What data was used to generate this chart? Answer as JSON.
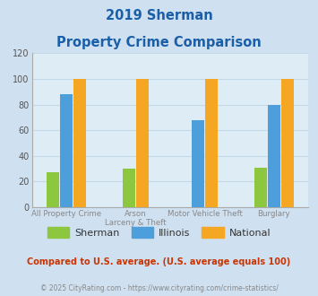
{
  "title_line1": "2019 Sherman",
  "title_line2": "Property Crime Comparison",
  "category_labels_line1": [
    "All Property Crime",
    "Arson",
    "Motor Vehicle Theft",
    "Burglary"
  ],
  "category_labels_line2": [
    "",
    "Larceny & Theft",
    "",
    ""
  ],
  "sherman": [
    27,
    30,
    0,
    31
  ],
  "illinois": [
    88,
    0,
    68,
    80
  ],
  "national": [
    100,
    100,
    100,
    100
  ],
  "show_sherman": [
    true,
    true,
    false,
    true
  ],
  "show_illinois": [
    true,
    false,
    true,
    true
  ],
  "show_national": [
    true,
    true,
    true,
    true
  ],
  "bar_colors": {
    "sherman": "#8dc63f",
    "illinois": "#4d9fdb",
    "national": "#f5a623"
  },
  "ylim": [
    0,
    120
  ],
  "yticks": [
    0,
    20,
    40,
    60,
    80,
    100,
    120
  ],
  "legend_labels": [
    "Sherman",
    "Illinois",
    "National"
  ],
  "footnote1": "Compared to U.S. average. (U.S. average equals 100)",
  "footnote2": "© 2025 CityRating.com - https://www.cityrating.com/crime-statistics/",
  "title_color": "#1a5fa8",
  "footnote1_color": "#cc3300",
  "footnote2_color": "#888888",
  "bg_color": "#cfe0f0",
  "plot_bg": "#deedf5",
  "grid_color": "#c0d8e8",
  "xlabel_color": "#888888"
}
